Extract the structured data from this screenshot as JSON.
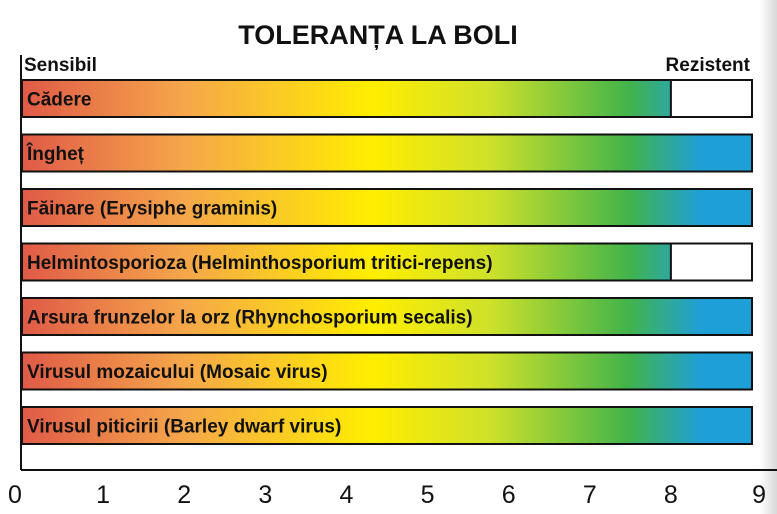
{
  "chart_data": {
    "type": "bar",
    "orientation": "horizontal",
    "title": "TOLERANȚA LA BOLI",
    "scale_labels": {
      "low": "Sensibil",
      "high": "Rezistent"
    },
    "categories": [
      "Cădere",
      "Îngheț",
      "Făinare (Erysiphe graminis)",
      "Helmintosporioza (Helminthosporium tritici-repens)",
      "Arsura frunzelor la orz (Rhynchosporium secalis)",
      "Virusul mozaicului (Mosaic virus)",
      "Virusul piticirii (Barley dwarf virus)"
    ],
    "values": [
      8,
      9,
      9,
      8,
      9,
      9,
      9
    ],
    "xlim": [
      0,
      9
    ],
    "x_ticks": [
      "0",
      "1",
      "2",
      "3",
      "4",
      "5",
      "6",
      "7",
      "8",
      "9"
    ],
    "grid": false,
    "gradient_colors": [
      "#e05a48",
      "#f5a64a",
      "#ffee00",
      "#cfe12a",
      "#42b44a",
      "#1f9fd8"
    ]
  }
}
